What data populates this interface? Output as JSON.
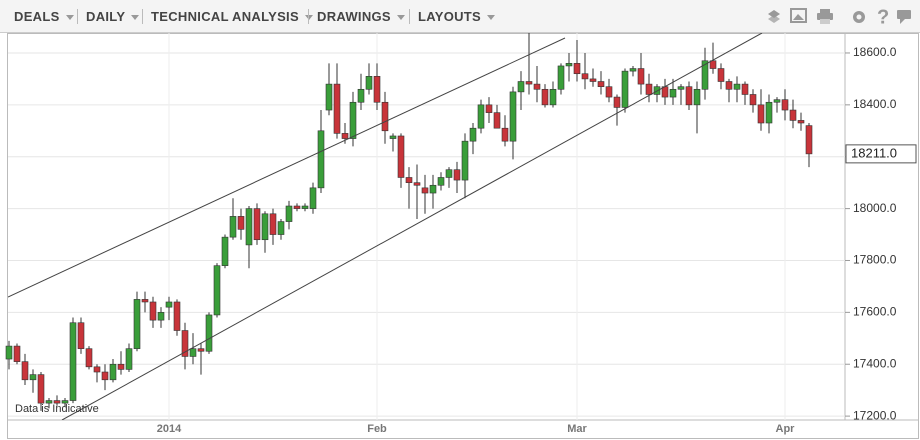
{
  "toolbar": {
    "menus": [
      "DEALS",
      "DAILY",
      "TECHNICAL ANALYSIS",
      "DRAWINGS",
      "LAYOUTS"
    ]
  },
  "chart_data": {
    "type": "candlestick",
    "annotation": "Data is Indicative",
    "current_price": {
      "value": 18211,
      "label": "18211.0"
    },
    "up_color": "#3a9e3a",
    "down_color": "#c8343a",
    "categories": [
      null,
      null,
      null,
      null,
      null,
      null,
      null,
      null,
      null,
      null,
      null,
      null,
      null,
      null,
      null,
      null,
      null,
      null,
      null,
      null,
      "2014",
      null,
      null,
      null,
      null,
      null,
      null,
      null,
      null,
      null,
      null,
      null,
      null,
      null,
      null,
      null,
      null,
      null,
      null,
      null,
      null,
      null,
      null,
      null,
      null,
      null,
      "Feb",
      null,
      null,
      null,
      null,
      null,
      null,
      null,
      null,
      null,
      null,
      null,
      null,
      null,
      null,
      null,
      null,
      null,
      null,
      null,
      null,
      null,
      null,
      null,
      null,
      "Mar",
      null,
      null,
      null,
      null,
      null,
      null,
      null,
      null,
      null,
      null,
      null,
      null,
      null,
      null,
      null,
      null,
      null,
      null,
      null,
      null,
      null,
      null,
      null,
      null,
      null,
      "Apr",
      null,
      null,
      null
    ],
    "open": [
      17420,
      17470,
      17410,
      17340,
      17360,
      17250,
      17260,
      17250,
      17260,
      17560,
      17460,
      17390,
      17370,
      17340,
      17400,
      17380,
      17460,
      17650,
      17640,
      17570,
      17620,
      17640,
      17530,
      17430,
      17460,
      17450,
      17590,
      17780,
      17890,
      17970,
      17860,
      18000,
      17880,
      17980,
      17900,
      17950,
      18010,
      18000,
      18000,
      18080,
      18380,
      18480,
      18290,
      18270,
      18410,
      18460,
      18510,
      18410,
      18270,
      18280,
      18120,
      18100,
      18080,
      18060,
      18090,
      18120,
      18150,
      18110,
      18260,
      18310,
      18400,
      18370,
      18310,
      18260,
      18450,
      18490,
      18480,
      18460,
      18400,
      18460,
      18550,
      18560,
      18520,
      18500,
      18490,
      18470,
      18430,
      18390,
      18530,
      18540,
      18480,
      18440,
      18470,
      18430,
      18460,
      18470,
      18400,
      18460,
      18570,
      18540,
      18490,
      18460,
      18480,
      18440,
      18400,
      18330,
      18410,
      18420,
      18380,
      18340,
      18320
    ],
    "high": [
      17490,
      17480,
      17440,
      17380,
      17370,
      17270,
      17280,
      17270,
      17580,
      17580,
      17470,
      17400,
      17400,
      17420,
      17450,
      17480,
      17680,
      17680,
      17660,
      17620,
      17660,
      17650,
      17560,
      17520,
      17480,
      17600,
      17790,
      17900,
      18040,
      18000,
      18010,
      18020,
      17990,
      18000,
      17960,
      18030,
      18020,
      18020,
      18100,
      18380,
      18560,
      18560,
      18330,
      18450,
      18520,
      18560,
      18560,
      18450,
      18290,
      18290,
      18160,
      18170,
      18130,
      18130,
      18140,
      18160,
      18180,
      18290,
      18330,
      18420,
      18430,
      18400,
      18360,
      18470,
      18530,
      18680,
      18550,
      18480,
      18490,
      18560,
      18600,
      18650,
      18600,
      18540,
      18530,
      18500,
      18440,
      18540,
      18550,
      18600,
      18520,
      18480,
      18500,
      18500,
      18480,
      18490,
      18490,
      18620,
      18640,
      18560,
      18500,
      18510,
      18490,
      18460,
      18460,
      18440,
      18430,
      18460,
      18420,
      18370,
      18330
    ],
    "low": [
      17380,
      17400,
      17320,
      17290,
      17220,
      17230,
      17240,
      17235,
      17250,
      17440,
      17380,
      17330,
      17300,
      17330,
      17360,
      17370,
      17450,
      17600,
      17540,
      17540,
      17570,
      17510,
      17380,
      17400,
      17360,
      17440,
      17580,
      17770,
      17880,
      17880,
      17770,
      17860,
      17830,
      17860,
      17880,
      17920,
      17990,
      17990,
      17980,
      18060,
      18360,
      18270,
      18250,
      18240,
      18380,
      18440,
      18380,
      18250,
      18220,
      18080,
      18000,
      17960,
      17980,
      18000,
      18070,
      18080,
      18060,
      18040,
      18210,
      18290,
      18330,
      18320,
      18240,
      18190,
      18380,
      18440,
      18410,
      18390,
      18390,
      18440,
      18490,
      18490,
      18460,
      18470,
      18440,
      18410,
      18320,
      18370,
      18510,
      18440,
      18410,
      18410,
      18400,
      18400,
      18400,
      18380,
      18290,
      18420,
      18520,
      18460,
      18410,
      18410,
      18400,
      18370,
      18300,
      18290,
      18370,
      18340,
      18310,
      18300,
      18160
    ],
    "close": [
      17470,
      17410,
      17340,
      17360,
      17250,
      17260,
      17250,
      17260,
      17560,
      17460,
      17390,
      17370,
      17340,
      17400,
      17380,
      17460,
      17650,
      17640,
      17570,
      17600,
      17640,
      17530,
      17430,
      17460,
      17450,
      17590,
      17780,
      17890,
      17970,
      17920,
      18000,
      17880,
      17980,
      17900,
      17950,
      18010,
      18000,
      18010,
      18080,
      18300,
      18480,
      18290,
      18270,
      18410,
      18460,
      18510,
      18410,
      18300,
      18280,
      18120,
      18100,
      18090,
      18060,
      18090,
      18120,
      18150,
      18110,
      18260,
      18310,
      18400,
      18370,
      18310,
      18260,
      18450,
      18490,
      18480,
      18460,
      18400,
      18460,
      18550,
      18560,
      18520,
      18500,
      18490,
      18470,
      18430,
      18390,
      18530,
      18540,
      18480,
      18440,
      18470,
      18430,
      18460,
      18470,
      18400,
      18460,
      18570,
      18540,
      18490,
      18460,
      18480,
      18440,
      18400,
      18330,
      18410,
      18420,
      18380,
      18340,
      18330,
      18211
    ],
    "ylim": [
      17185,
      18677
    ],
    "yticks": [
      {
        "value": 17200,
        "label": "17200.0"
      },
      {
        "value": 17400,
        "label": "17400.0"
      },
      {
        "value": 17600,
        "label": "17600.0"
      },
      {
        "value": 17800,
        "label": "17800.0"
      },
      {
        "value": 18000,
        "label": "18000.0"
      },
      {
        "value": 18200,
        "label": "18200.0"
      },
      {
        "value": 18400,
        "label": "18400.0"
      },
      {
        "value": 18600,
        "label": "18600.0"
      }
    ],
    "grid": true
  }
}
